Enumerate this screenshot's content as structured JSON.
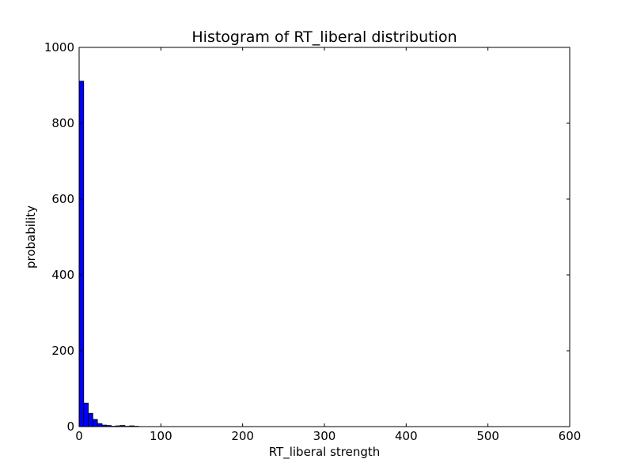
{
  "chart_data": {
    "type": "bar",
    "title": "Histogram of RT_liberal  distribution",
    "xlabel": "RT_liberal  strength",
    "ylabel": "probability",
    "xlim": [
      0,
      600
    ],
    "ylim": [
      0,
      1000
    ],
    "x_ticks": [
      0,
      100,
      200,
      300,
      400,
      500,
      600
    ],
    "y_ticks": [
      0,
      200,
      400,
      600,
      800,
      1000
    ],
    "grid": false,
    "bar_color": "#0000ff",
    "bin_width": 5.6,
    "bins": [
      {
        "x0": 0.0,
        "value": 911
      },
      {
        "x0": 5.6,
        "value": 62
      },
      {
        "x0": 11.2,
        "value": 35
      },
      {
        "x0": 16.8,
        "value": 19
      },
      {
        "x0": 22.4,
        "value": 8
      },
      {
        "x0": 28.0,
        "value": 4
      },
      {
        "x0": 33.6,
        "value": 3
      },
      {
        "x0": 39.2,
        "value": 1
      },
      {
        "x0": 44.8,
        "value": 2
      },
      {
        "x0": 50.4,
        "value": 3
      },
      {
        "x0": 56.0,
        "value": 1
      },
      {
        "x0": 61.6,
        "value": 2
      },
      {
        "x0": 67.2,
        "value": 1
      }
    ]
  }
}
